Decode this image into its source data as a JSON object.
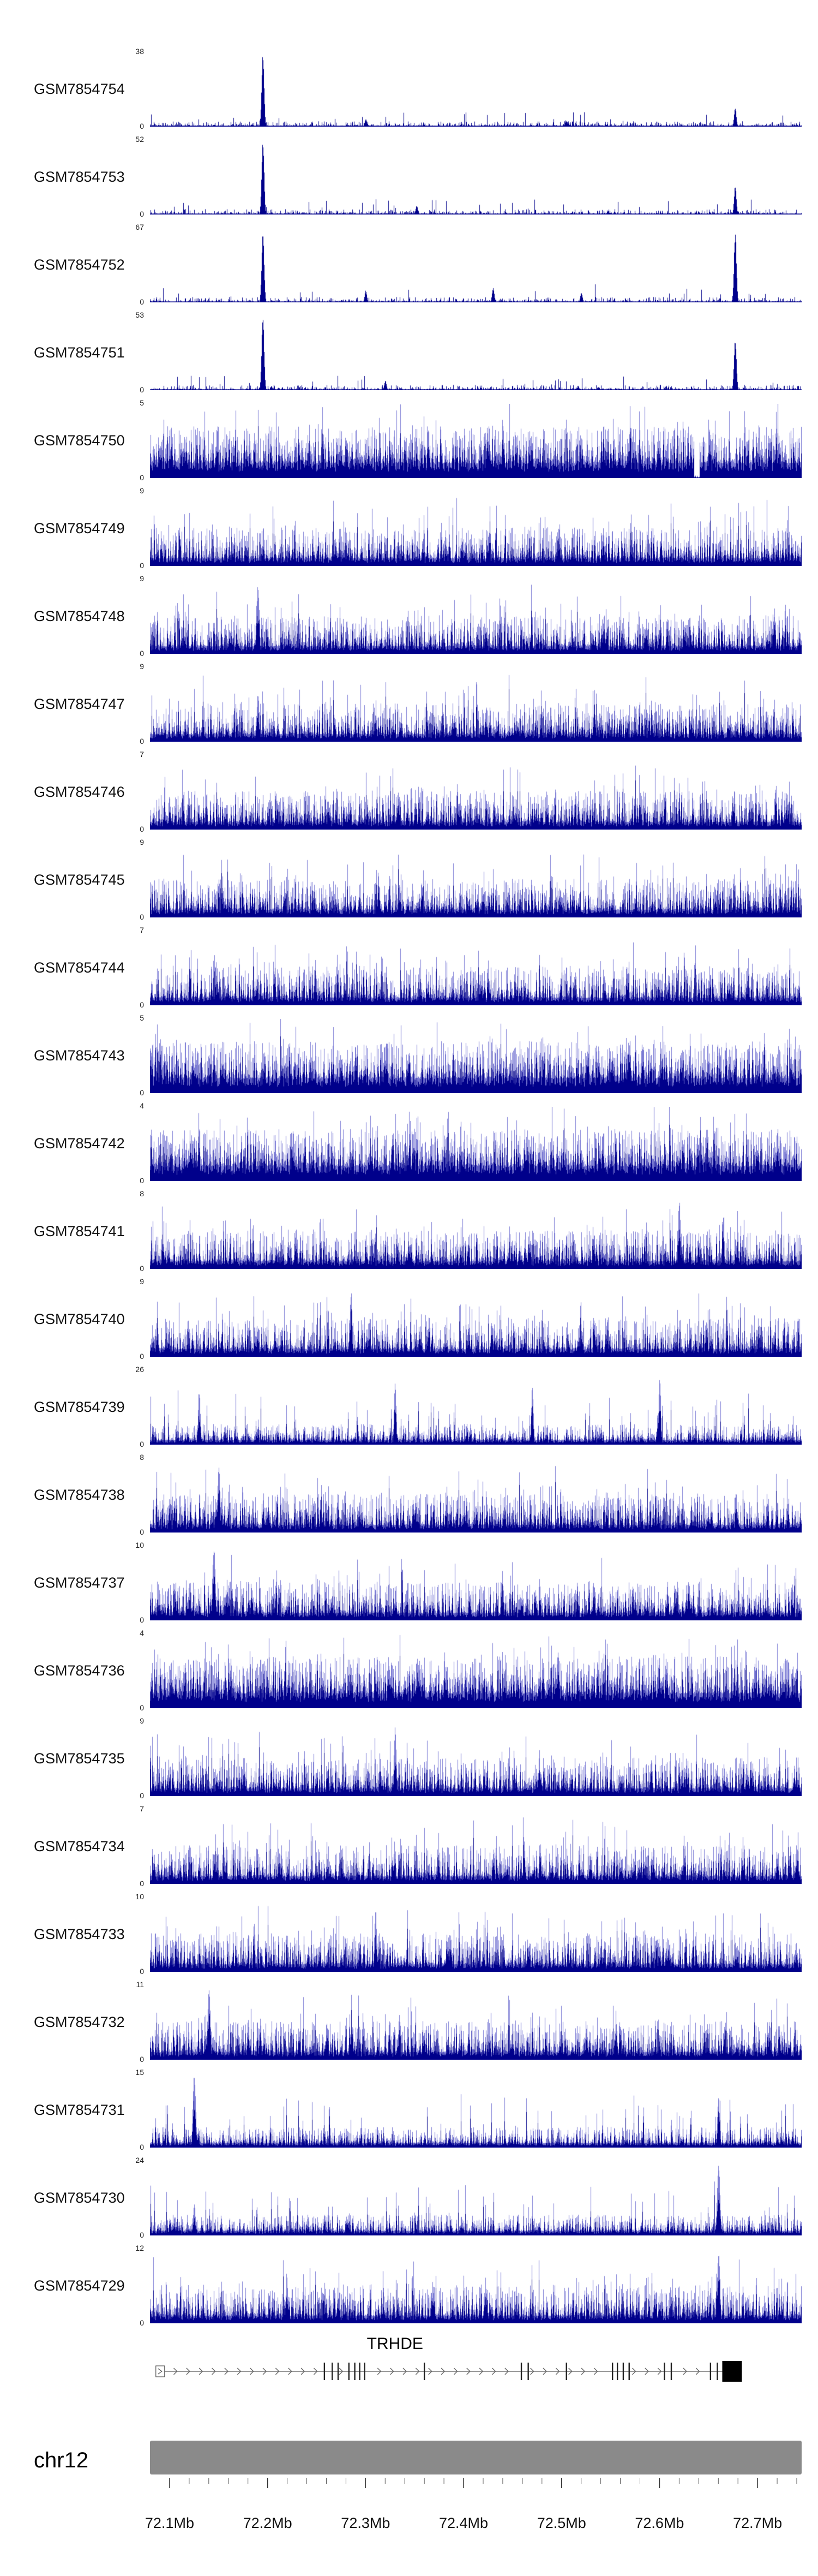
{
  "ideogram": {
    "label": "chr12",
    "color": "#8a8a8a"
  },
  "chart_data": {
    "type": "area",
    "title": "",
    "region": {
      "chrom": "chr12",
      "start_mb": 72.08,
      "end_mb": 72.745
    },
    "y_zero_label": "0",
    "signal_color": "#00008b",
    "signal_color_light": "#7b7bd4",
    "x_axis": {
      "ticks": [
        "72.1Mb",
        "72.2Mb",
        "72.3Mb",
        "72.4Mb",
        "72.5Mb",
        "72.6Mb",
        "72.7Mb"
      ],
      "tick_values_mb": [
        72.1,
        72.2,
        72.3,
        72.4,
        72.5,
        72.6,
        72.7
      ],
      "minor_step_mb": 0.02,
      "minor_start_mb": 72.1,
      "minor_end_mb": 72.74
    },
    "profiles": {
      "sparse": {
        "base": 0.012,
        "noise": 0.06,
        "pow": 5,
        "spike_prob": 0.02,
        "spike_amp": 0.18
      },
      "dense": {
        "base": 0.1,
        "noise": 0.42,
        "pow": 2.2,
        "spike_prob": 0.1,
        "spike_amp": 0.42
      },
      "dense_full": {
        "base": 0.2,
        "noise": 0.5,
        "pow": 1.8,
        "spike_prob": 0.12,
        "spike_amp": 0.35
      },
      "dense_low": {
        "base": 0.06,
        "noise": 0.22,
        "pow": 2.6,
        "spike_prob": 0.05,
        "spike_amp": 0.5
      }
    },
    "tracks": [
      {
        "name": "GSM7854754",
        "ymax": 38,
        "profile": "sparse",
        "seed": 1,
        "peaks": [
          {
            "mb": 72.195,
            "h": 1.0,
            "w": 2.2
          },
          {
            "mb": 72.677,
            "h": 0.26,
            "w": 2
          },
          {
            "mb": 72.3,
            "h": 0.1,
            "w": 2
          },
          {
            "mb": 72.505,
            "h": 0.08,
            "w": 2
          }
        ]
      },
      {
        "name": "GSM7854753",
        "ymax": 52,
        "profile": "sparse",
        "seed": 2,
        "peaks": [
          {
            "mb": 72.195,
            "h": 1.0,
            "w": 2.2
          },
          {
            "mb": 72.677,
            "h": 0.4,
            "w": 2
          },
          {
            "mb": 72.352,
            "h": 0.12,
            "w": 2
          }
        ]
      },
      {
        "name": "GSM7854752",
        "ymax": 67,
        "profile": "sparse",
        "seed": 3,
        "peaks": [
          {
            "mb": 72.195,
            "h": 0.96,
            "w": 2.2
          },
          {
            "mb": 72.677,
            "h": 0.95,
            "w": 2.2
          },
          {
            "mb": 72.3,
            "h": 0.16,
            "w": 2
          },
          {
            "mb": 72.43,
            "h": 0.2,
            "w": 2
          },
          {
            "mb": 72.52,
            "h": 0.13,
            "w": 2
          }
        ]
      },
      {
        "name": "GSM7854751",
        "ymax": 53,
        "profile": "sparse",
        "seed": 4,
        "peaks": [
          {
            "mb": 72.195,
            "h": 1.0,
            "w": 2.2
          },
          {
            "mb": 72.677,
            "h": 0.7,
            "w": 2.2
          },
          {
            "mb": 72.32,
            "h": 0.13,
            "w": 2
          }
        ]
      },
      {
        "name": "GSM7854750",
        "ymax": 5,
        "profile": "dense_full",
        "seed": 5,
        "dips": [
          {
            "mb": 72.638,
            "w": 5
          }
        ]
      },
      {
        "name": "GSM7854749",
        "ymax": 9,
        "profile": "dense",
        "seed": 6
      },
      {
        "name": "GSM7854748",
        "ymax": 9,
        "profile": "dense",
        "seed": 7,
        "peaks": [
          {
            "mb": 72.19,
            "h": 0.95,
            "w": 2.6
          }
        ]
      },
      {
        "name": "GSM7854747",
        "ymax": 9,
        "profile": "dense",
        "seed": 8,
        "peaks": [
          {
            "mb": 72.19,
            "h": 0.65,
            "w": 2.4
          }
        ]
      },
      {
        "name": "GSM7854746",
        "ymax": 7,
        "profile": "dense",
        "seed": 9
      },
      {
        "name": "GSM7854745",
        "ymax": 9,
        "profile": "dense",
        "seed": 10
      },
      {
        "name": "GSM7854744",
        "ymax": 7,
        "profile": "dense",
        "seed": 11
      },
      {
        "name": "GSM7854743",
        "ymax": 5,
        "profile": "dense_full",
        "seed": 12
      },
      {
        "name": "GSM7854742",
        "ymax": 4,
        "profile": "dense_full",
        "seed": 13
      },
      {
        "name": "GSM7854741",
        "ymax": 8,
        "profile": "dense",
        "seed": 14,
        "peaks": [
          {
            "mb": 72.62,
            "h": 0.95,
            "w": 2.2
          }
        ]
      },
      {
        "name": "GSM7854740",
        "ymax": 9,
        "profile": "dense",
        "seed": 15,
        "peaks": [
          {
            "mb": 72.285,
            "h": 0.9,
            "w": 2.2
          }
        ]
      },
      {
        "name": "GSM7854739",
        "ymax": 26,
        "profile": "dense_low",
        "seed": 16,
        "peaks": [
          {
            "mb": 72.13,
            "h": 0.75,
            "w": 2
          },
          {
            "mb": 72.33,
            "h": 0.85,
            "w": 2
          },
          {
            "mb": 72.47,
            "h": 0.8,
            "w": 2
          },
          {
            "mb": 72.6,
            "h": 0.9,
            "w": 2
          }
        ]
      },
      {
        "name": "GSM7854738",
        "ymax": 8,
        "profile": "dense",
        "seed": 17,
        "peaks": [
          {
            "mb": 72.15,
            "h": 0.9,
            "w": 2.4
          }
        ]
      },
      {
        "name": "GSM7854737",
        "ymax": 10,
        "profile": "dense",
        "seed": 18,
        "peaks": [
          {
            "mb": 72.145,
            "h": 1.0,
            "w": 2.8
          },
          {
            "mb": 72.105,
            "h": 0.5,
            "w": 2
          }
        ]
      },
      {
        "name": "GSM7854736",
        "ymax": 4,
        "profile": "dense_full",
        "seed": 19
      },
      {
        "name": "GSM7854735",
        "ymax": 9,
        "profile": "dense",
        "seed": 20,
        "peaks": [
          {
            "mb": 72.33,
            "h": 0.95,
            "w": 2.2
          }
        ]
      },
      {
        "name": "GSM7854734",
        "ymax": 7,
        "profile": "dense",
        "seed": 21
      },
      {
        "name": "GSM7854733",
        "ymax": 10,
        "profile": "dense",
        "seed": 22,
        "peaks": [
          {
            "mb": 72.31,
            "h": 0.85,
            "w": 2.2
          }
        ]
      },
      {
        "name": "GSM7854732",
        "ymax": 11,
        "profile": "dense",
        "seed": 23,
        "peaks": [
          {
            "mb": 72.14,
            "h": 0.95,
            "w": 2.6
          },
          {
            "mb": 72.18,
            "h": 0.55,
            "w": 2
          }
        ]
      },
      {
        "name": "GSM7854731",
        "ymax": 15,
        "profile": "dense_low",
        "seed": 24,
        "peaks": [
          {
            "mb": 72.125,
            "h": 1.0,
            "w": 2.6
          },
          {
            "mb": 72.66,
            "h": 0.7,
            "w": 2.2
          }
        ]
      },
      {
        "name": "GSM7854730",
        "ymax": 24,
        "profile": "dense_low",
        "seed": 25,
        "peaks": [
          {
            "mb": 72.66,
            "h": 1.0,
            "w": 2.6
          },
          {
            "mb": 72.125,
            "h": 0.45,
            "w": 2
          }
        ]
      },
      {
        "name": "GSM7854729",
        "ymax": 12,
        "profile": "dense",
        "seed": 26,
        "peaks": [
          {
            "mb": 72.66,
            "h": 1.0,
            "w": 2.6
          }
        ]
      }
    ],
    "gene_track": {
      "label": "TRHDE",
      "label_mb": 72.33,
      "strand": "+",
      "line_start_mb": 72.086,
      "line_end_mb": 72.684,
      "arrow_step_mb": 0.013,
      "exons_mb": [
        72.258,
        72.266,
        72.272,
        72.283,
        72.289,
        72.294,
        72.299,
        72.36,
        72.459,
        72.466,
        72.505,
        72.552,
        72.557,
        72.563,
        72.569,
        72.605,
        72.612,
        72.652,
        72.659
      ],
      "thick_box": {
        "start_mb": 72.664,
        "end_mb": 72.684
      }
    }
  }
}
